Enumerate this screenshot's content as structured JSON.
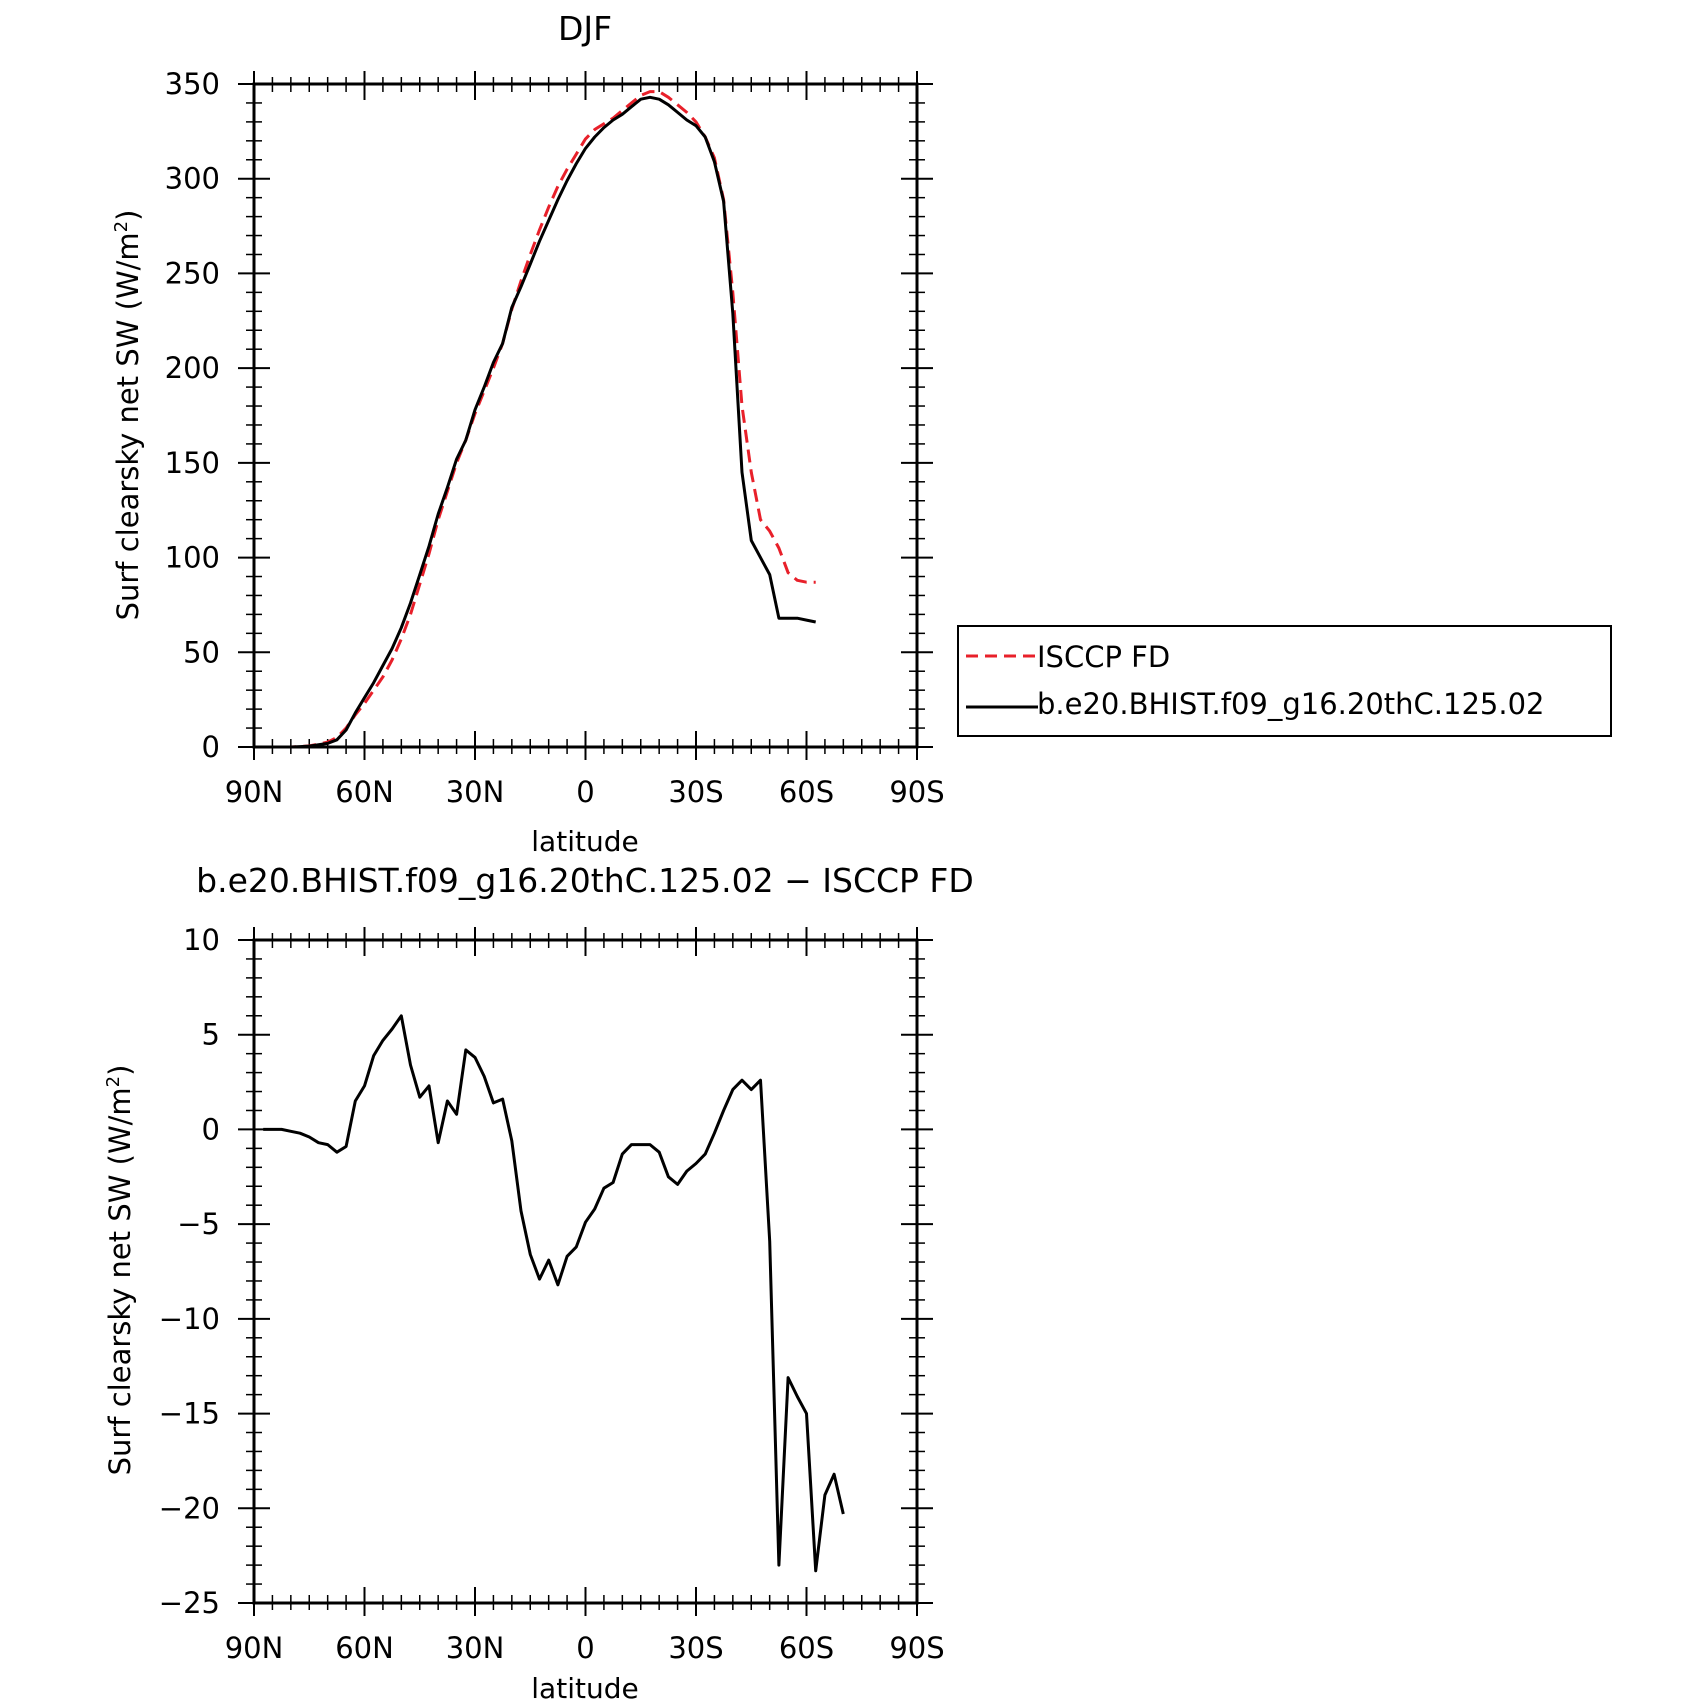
{
  "chart_data": [
    {
      "type": "line",
      "title": "DJF",
      "xlabel": "latitude",
      "ylabel": "Surf clearsky net SW (W/m",
      "ylabel_sup": "2",
      "ylabel_tail": ")",
      "xlim": [
        90,
        -90
      ],
      "ylim": [
        0,
        350
      ],
      "xticks": [
        90,
        60,
        30,
        0,
        -30,
        -60,
        -90
      ],
      "xticklabels": [
        "90N",
        "60N",
        "30N",
        "0",
        "30S",
        "60S",
        "90S"
      ],
      "yticks": [
        0,
        50,
        100,
        150,
        200,
        250,
        300,
        350
      ],
      "yticklabels": [
        "0",
        "50",
        "100",
        "150",
        "200",
        "250",
        "300",
        "350"
      ],
      "series": [
        {
          "name": "ISCCP FD",
          "color": "#e8202a",
          "dash": true,
          "points": [
            [
              87.5,
              0
            ],
            [
              85,
              0
            ],
            [
              82.5,
              0
            ],
            [
              80,
              0
            ],
            [
              77.5,
              0.2
            ],
            [
              75,
              0.6
            ],
            [
              72.5,
              1.5
            ],
            [
              70,
              2.6
            ],
            [
              67.5,
              5
            ],
            [
              65,
              10
            ],
            [
              62.5,
              17
            ],
            [
              60,
              23
            ],
            [
              57.5,
              30
            ],
            [
              55,
              37
            ],
            [
              52.5,
              46
            ],
            [
              50,
              57
            ],
            [
              47.5,
              70
            ],
            [
              45,
              86
            ],
            [
              42.5,
              102
            ],
            [
              40,
              120
            ],
            [
              37.5,
              135
            ],
            [
              35,
              150
            ],
            [
              32.5,
              162
            ],
            [
              30,
              176
            ],
            [
              27.5,
              188
            ],
            [
              25,
              200
            ],
            [
              22.5,
              213
            ],
            [
              20,
              231
            ],
            [
              17.5,
              246
            ],
            [
              15,
              260
            ],
            [
              12.5,
              273
            ],
            [
              10,
              285
            ],
            [
              7.5,
              296
            ],
            [
              5,
              305
            ],
            [
              2.5,
              313
            ],
            [
              0,
              321
            ],
            [
              -2.5,
              326
            ],
            [
              -5,
              329
            ],
            [
              -7.5,
              332
            ],
            [
              -10,
              336
            ],
            [
              -12.5,
              340
            ],
            [
              -15,
              344
            ],
            [
              -17.5,
              346
            ],
            [
              -20,
              346
            ],
            [
              -22.5,
              343
            ],
            [
              -25,
              339
            ],
            [
              -27.5,
              335
            ],
            [
              -30,
              330
            ],
            [
              -32.5,
              322
            ],
            [
              -35,
              311
            ],
            [
              -37.5,
              289
            ],
            [
              -40,
              240
            ],
            [
              -42.5,
              180
            ],
            [
              -45,
              145
            ],
            [
              -47.5,
              120
            ],
            [
              -50,
              114
            ],
            [
              -52.5,
              105
            ],
            [
              -55,
              92
            ],
            [
              -57.5,
              88
            ],
            [
              -60,
              87
            ],
            [
              -62.5,
              87
            ]
          ]
        },
        {
          "name": "b.e20.BHIST.f09_g16.20thC.125.02",
          "color": "#000000",
          "dash": false,
          "points": [
            [
              87.5,
              0
            ],
            [
              85,
              0
            ],
            [
              82.5,
              0
            ],
            [
              80,
              0
            ],
            [
              77.5,
              0.2
            ],
            [
              75,
              0.5
            ],
            [
              72.5,
              1.2
            ],
            [
              70,
              1.9
            ],
            [
              67.5,
              3.8
            ],
            [
              65,
              9
            ],
            [
              62.5,
              18
            ],
            [
              60,
              26
            ],
            [
              57.5,
              34
            ],
            [
              55,
              43
            ],
            [
              52.5,
              52
            ],
            [
              50,
              63
            ],
            [
              47.5,
              76
            ],
            [
              45,
              91
            ],
            [
              42.5,
              106
            ],
            [
              40,
              123
            ],
            [
              37.5,
              137
            ],
            [
              35,
              152
            ],
            [
              32.5,
              162
            ],
            [
              30,
              178
            ],
            [
              27.5,
              190
            ],
            [
              25,
              203
            ],
            [
              22.5,
              213
            ],
            [
              20,
              232
            ],
            [
              17.5,
              243
            ],
            [
              15,
              255
            ],
            [
              12.5,
              267
            ],
            [
              10,
              278
            ],
            [
              7.5,
              289
            ],
            [
              5,
              299
            ],
            [
              2.5,
              308
            ],
            [
              0,
              316
            ],
            [
              -2.5,
              322
            ],
            [
              -5,
              327
            ],
            [
              -7.5,
              331
            ],
            [
              -10,
              334
            ],
            [
              -12.5,
              338
            ],
            [
              -15,
              342
            ],
            [
              -17.5,
              343
            ],
            [
              -20,
              342
            ],
            [
              -22.5,
              339
            ],
            [
              -25,
              335
            ],
            [
              -27.5,
              331
            ],
            [
              -30,
              328
            ],
            [
              -32.5,
              322
            ],
            [
              -35,
              309
            ],
            [
              -37.5,
              288
            ],
            [
              -40,
              229
            ],
            [
              -42.5,
              145
            ],
            [
              -45,
              109
            ],
            [
              -47.5,
              100
            ],
            [
              -50,
              91
            ],
            [
              -52.5,
              68
            ],
            [
              -55,
              68
            ],
            [
              -57.5,
              68
            ],
            [
              -60,
              67
            ],
            [
              -62.5,
              66
            ]
          ]
        }
      ],
      "legend": {
        "placement": "right",
        "entries": [
          "ISCCP FD",
          "b.e20.BHIST.f09_g16.20thC.125.02"
        ]
      },
      "grid": false
    },
    {
      "type": "line",
      "title": "b.e20.BHIST.f09_g16.20thC.125.02 − ISCCP FD",
      "xlabel": "latitude",
      "ylabel": "Surf clearsky net SW (W/m",
      "ylabel_sup": "2",
      "ylabel_tail": ")",
      "xlim": [
        90,
        -90
      ],
      "ylim": [
        -25,
        10
      ],
      "xticks": [
        90,
        60,
        30,
        0,
        -30,
        -60,
        -90
      ],
      "xticklabels": [
        "90N",
        "60N",
        "30N",
        "0",
        "30S",
        "60S",
        "90S"
      ],
      "yticks": [
        -25,
        -20,
        -15,
        -10,
        -5,
        0,
        5,
        10
      ],
      "yticklabels": [
        "−25",
        "−20",
        "−15",
        "−10",
        "−5",
        "0",
        "5",
        "10"
      ],
      "series": [
        {
          "name": "",
          "color": "#000000",
          "dash": false,
          "points": [
            [
              87.5,
              0
            ],
            [
              85,
              0
            ],
            [
              82.5,
              0
            ],
            [
              80,
              -0.1
            ],
            [
              77.5,
              -0.2
            ],
            [
              75,
              -0.4
            ],
            [
              72.5,
              -0.7
            ],
            [
              70,
              -0.8
            ],
            [
              67.5,
              -1.2
            ],
            [
              65,
              -0.9
            ],
            [
              62.5,
              1.5
            ],
            [
              60,
              2.3
            ],
            [
              57.5,
              3.9
            ],
            [
              55,
              4.7
            ],
            [
              52.5,
              5.3
            ],
            [
              50,
              6.0
            ],
            [
              47.5,
              3.4
            ],
            [
              45,
              1.7
            ],
            [
              42.5,
              2.3
            ],
            [
              40,
              -0.7
            ],
            [
              37.5,
              1.5
            ],
            [
              35,
              0.8
            ],
            [
              32.5,
              4.2
            ],
            [
              30,
              3.8
            ],
            [
              27.5,
              2.8
            ],
            [
              25,
              1.4
            ],
            [
              22.5,
              1.6
            ],
            [
              20,
              -0.6
            ],
            [
              17.5,
              -4.3
            ],
            [
              15,
              -6.6
            ],
            [
              12.5,
              -7.9
            ],
            [
              10,
              -6.9
            ],
            [
              7.5,
              -8.2
            ],
            [
              5,
              -6.7
            ],
            [
              2.5,
              -6.2
            ],
            [
              0,
              -4.9
            ],
            [
              -2.5,
              -4.2
            ],
            [
              -5,
              -3.1
            ],
            [
              -7.5,
              -2.8
            ],
            [
              -10,
              -1.3
            ],
            [
              -12.5,
              -0.8
            ],
            [
              -15,
              -0.8
            ],
            [
              -17.5,
              -0.8
            ],
            [
              -20,
              -1.2
            ],
            [
              -22.5,
              -2.5
            ],
            [
              -25,
              -2.9
            ],
            [
              -27.5,
              -2.2
            ],
            [
              -30,
              -1.8
            ],
            [
              -32.5,
              -1.3
            ],
            [
              -35,
              -0.2
            ],
            [
              -37.5,
              1.0
            ],
            [
              -40,
              2.1
            ],
            [
              -42.5,
              2.6
            ],
            [
              -45,
              2.1
            ],
            [
              -47.5,
              2.6
            ],
            [
              -50,
              -5.9
            ],
            [
              -52.5,
              -23.0
            ],
            [
              -55,
              -13.1
            ],
            [
              -57.5,
              -14.1
            ],
            [
              -60,
              -15.0
            ],
            [
              -62.5,
              -23.3
            ],
            [
              -65,
              -19.3
            ],
            [
              -67.5,
              -18.2
            ],
            [
              -70,
              -20.3
            ]
          ]
        }
      ],
      "grid": false
    }
  ]
}
